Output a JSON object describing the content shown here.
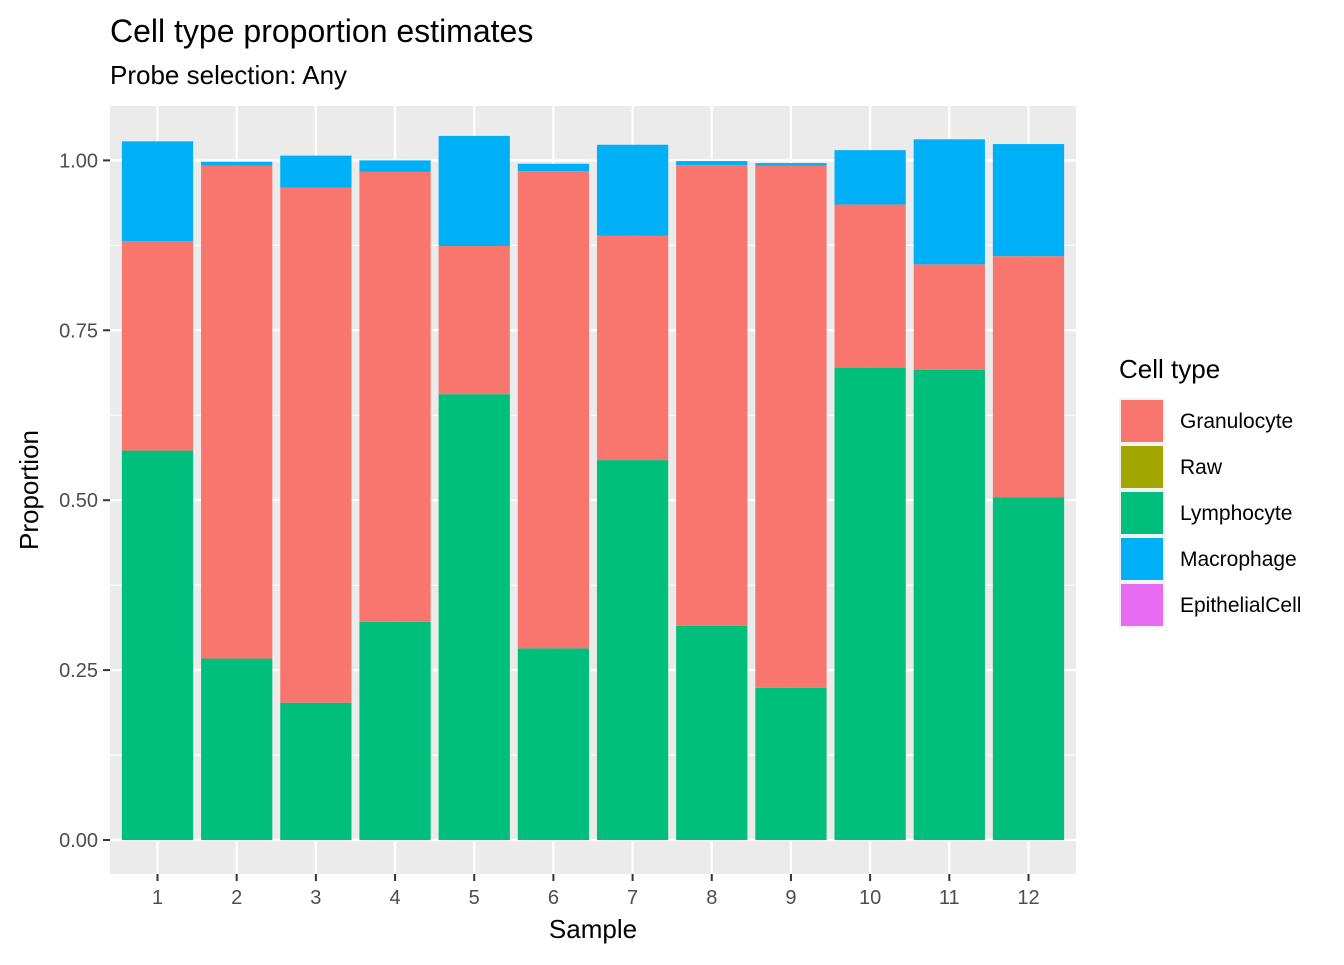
{
  "colors": {
    "Granulocyte": "#F8766D",
    "Raw": "#A3A500",
    "Lymphocyte": "#00BF7D",
    "Macrophage": "#00B0F6",
    "EpithelialCell": "#E76BF3",
    "panel_background": "#EBEBEB",
    "grid_line": "#FFFFFF",
    "axis_text": "#4D4D4D"
  },
  "chart_data": {
    "type": "bar",
    "stacked": true,
    "title": "Cell type proportion estimates",
    "subtitle": "Probe selection: Any",
    "xlabel": "Sample",
    "ylabel": "Proportion",
    "categories": [
      "1",
      "2",
      "3",
      "4",
      "5",
      "6",
      "7",
      "8",
      "9",
      "10",
      "11",
      "12"
    ],
    "ylim": [
      -0.05,
      1.08
    ],
    "yticks": [
      0.0,
      0.25,
      0.5,
      0.75,
      1.0
    ],
    "ytick_labels": [
      "0.00",
      "0.25",
      "0.50",
      "0.75",
      "1.00"
    ],
    "grid": true,
    "legend": {
      "title": "Cell type",
      "placement": "right",
      "entries": [
        "Granulocyte",
        "Raw",
        "Lymphocyte",
        "Macrophage",
        "EpithelialCell"
      ]
    },
    "stack_order_bottom_to_top": [
      "Lymphocyte",
      "Granulocyte",
      "Macrophage"
    ],
    "series": [
      {
        "name": "Granulocyte",
        "values": [
          0.308,
          0.725,
          0.758,
          0.662,
          0.218,
          0.702,
          0.33,
          0.678,
          0.768,
          0.24,
          0.155,
          0.355
        ]
      },
      {
        "name": "Raw",
        "values": [
          0,
          0,
          0,
          0,
          0,
          0,
          0,
          0,
          0,
          0,
          0,
          0
        ]
      },
      {
        "name": "Lymphocyte",
        "values": [
          0.573,
          0.267,
          0.202,
          0.321,
          0.656,
          0.282,
          0.559,
          0.315,
          0.224,
          0.695,
          0.692,
          0.504
        ]
      },
      {
        "name": "Macrophage",
        "values": [
          0.147,
          0.006,
          0.047,
          0.017,
          0.162,
          0.011,
          0.134,
          0.006,
          0.004,
          0.08,
          0.184,
          0.165
        ]
      },
      {
        "name": "EpithelialCell",
        "values": [
          0,
          0,
          0,
          0,
          0,
          0,
          0,
          0,
          0,
          0,
          0,
          0
        ]
      }
    ]
  }
}
